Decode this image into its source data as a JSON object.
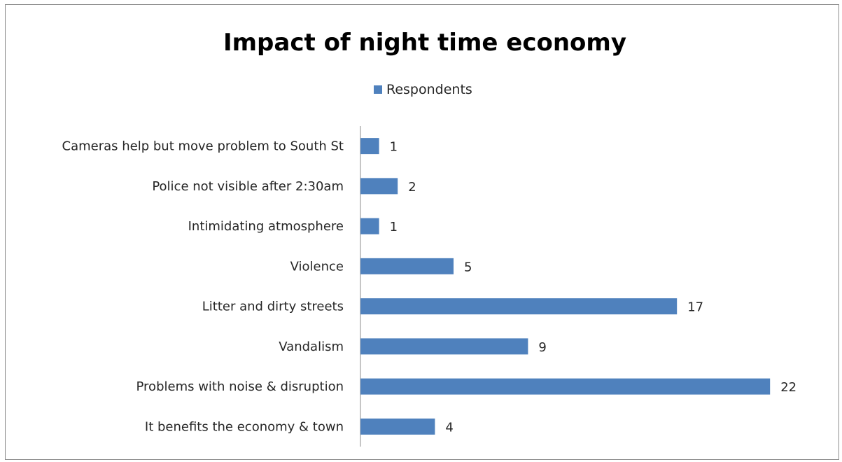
{
  "chart_data": {
    "type": "bar",
    "orientation": "horizontal",
    "title": "Impact of night time economy",
    "legend": "top",
    "categories": [
      "Cameras help but move problem to South St",
      "Police not visible after 2:30am",
      "Intimidating atmosphere",
      "Violence",
      "Litter and dirty streets",
      "Vandalism",
      "Problems with noise & disruption",
      "It benefits the economy & town"
    ],
    "series": [
      {
        "name": "Respondents",
        "values": [
          1,
          2,
          1,
          5,
          17,
          9,
          22,
          4
        ],
        "color": "#4f81bd"
      }
    ],
    "data_labels": true,
    "grid": false,
    "xlim": [
      0,
      22
    ]
  }
}
